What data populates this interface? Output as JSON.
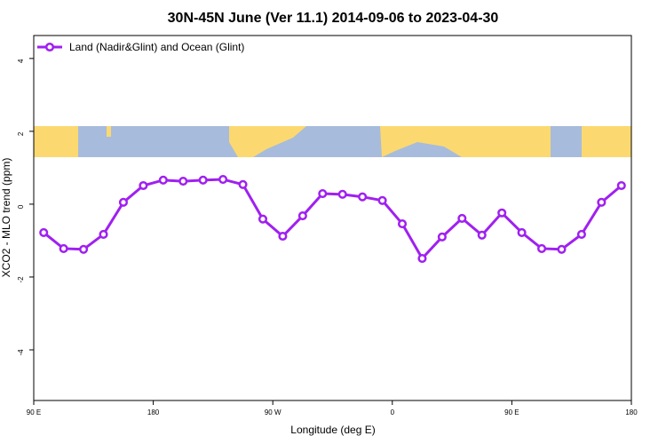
{
  "chart_data": {
    "type": "line",
    "title": "30N-45N June (Ver 11.1)   2014-09-06 to 2023-04-30",
    "x_label": "Longitude (deg E)",
    "y_label": "XCO2 - MLO trend (ppm)",
    "x": [
      97.5,
      112.5,
      127.5,
      142.5,
      157.5,
      172.5,
      187.5,
      202.5,
      217.5,
      232.5,
      247.5,
      262.5,
      277.5,
      292.5,
      307.5,
      322.5,
      337.5,
      352.5,
      367.5,
      382.5,
      397.5,
      412.5,
      427.5,
      442.5,
      457.5,
      472.5,
      487.5,
      502.5,
      517.5,
      532.5
    ],
    "series": [
      {
        "name": "Land (Nadir&Glint) and Ocean (Glint)",
        "color": "#a020f0",
        "values": [
          -0.78,
          -1.22,
          -1.24,
          -0.83,
          0.05,
          0.51,
          0.66,
          0.63,
          0.66,
          0.68,
          0.54,
          -0.41,
          -0.88,
          -0.32,
          0.29,
          0.27,
          0.2,
          0.1,
          -0.54,
          -1.49,
          -0.9,
          -0.39,
          -0.85,
          -0.24,
          -0.78,
          -1.22,
          -1.24,
          -0.83,
          0.05,
          0.51
        ]
      }
    ],
    "xlim": [
      90,
      540
    ],
    "xticks": [
      {
        "value": 90,
        "label": "90 E"
      },
      180,
      {
        "value": 270,
        "label": "90 W"
      },
      {
        "value": 360,
        "label": "0"
      },
      {
        "value": 450,
        "label": "90 E"
      },
      {
        "value": 540,
        "label": "180"
      }
    ],
    "ylim": [
      -5.39,
      4.63
    ],
    "yticks": [
      -4,
      -2,
      0,
      2,
      4
    ],
    "legend": "top-left"
  }
}
